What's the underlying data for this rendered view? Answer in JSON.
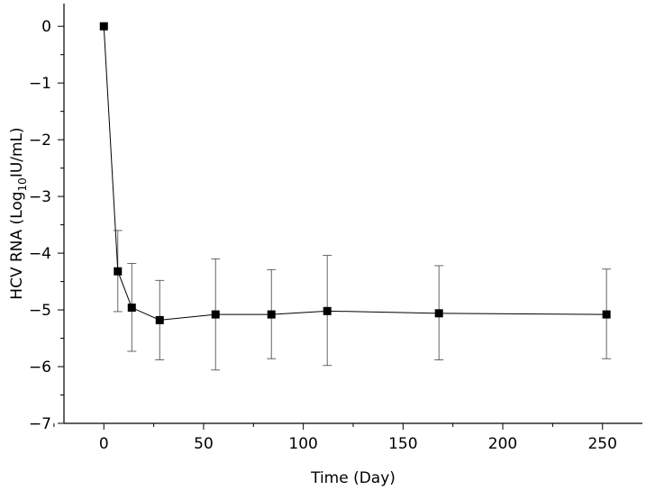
{
  "chart_data": {
    "type": "line",
    "title": "",
    "xlabel": "Time (Day)",
    "ylabel_main": "HCV RNA (Log",
    "ylabel_sub": "10",
    "ylabel_end": "IU/mL)",
    "xlim": [
      -20,
      270
    ],
    "ylim": [
      -7,
      0.4
    ],
    "x_ticks": [
      0,
      50,
      100,
      150,
      200,
      250
    ],
    "x_tick_labels": [
      "0",
      "50",
      "100",
      "150",
      "200",
      "250"
    ],
    "x_minor_ticks": [
      -25,
      25,
      75,
      125,
      175,
      225
    ],
    "y_ticks": [
      0,
      -1,
      -2,
      -3,
      -4,
      -5,
      -6,
      -7
    ],
    "y_tick_labels": [
      "0",
      "−1",
      "−2",
      "−3",
      "−4",
      "−5",
      "−6",
      "−7"
    ],
    "y_minor_ticks": [
      -0.5,
      -1.5,
      -2.5,
      -3.5,
      -4.5,
      -5.5,
      -6.5
    ],
    "grid": false,
    "series": [
      {
        "x": [
          0,
          7,
          14,
          28,
          56,
          84,
          112,
          168,
          252
        ],
        "y": [
          0,
          -4.32,
          -4.96,
          -5.18,
          -5.08,
          -5.08,
          -5.02,
          -5.06,
          -5.08
        ],
        "error_low": [
          0,
          -5.03,
          -5.73,
          -5.88,
          -6.06,
          -5.86,
          -5.98,
          -5.88,
          -5.86
        ],
        "error_high": [
          0,
          -3.6,
          -4.18,
          -4.48,
          -4.1,
          -4.29,
          -4.04,
          -4.22,
          -4.28
        ],
        "marker": "square",
        "color": "#000000"
      }
    ]
  }
}
